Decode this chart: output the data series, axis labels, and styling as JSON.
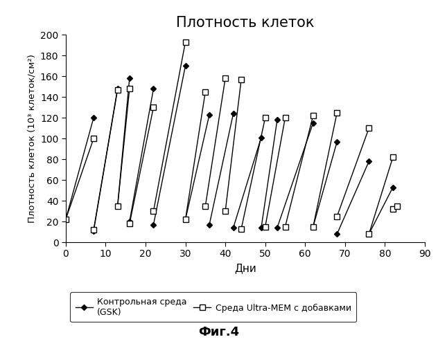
{
  "title": "Плотность клеток",
  "xlabel": "Дни",
  "ylabel": "Плотность клеток (10³ клеток/см²)",
  "xlim": [
    0,
    90
  ],
  "ylim": [
    0,
    200
  ],
  "xticks": [
    0,
    10,
    20,
    30,
    40,
    50,
    60,
    70,
    80,
    90
  ],
  "yticks": [
    0,
    20,
    40,
    60,
    80,
    100,
    120,
    140,
    160,
    180,
    200
  ],
  "fig_caption": "Фиг.4",
  "series1_label": "Контрольная среда\n(GSK)",
  "series2_label": "Среда Ultra-MEM с добавками",
  "series1_segments": [
    [
      [
        0,
        22
      ],
      [
        7,
        120
      ]
    ],
    [
      [
        7,
        11
      ],
      [
        13,
        148
      ]
    ],
    [
      [
        13,
        35
      ],
      [
        16,
        158
      ]
    ],
    [
      [
        16,
        20
      ],
      [
        22,
        148
      ]
    ],
    [
      [
        22,
        17
      ],
      [
        30,
        170
      ]
    ],
    [
      [
        30,
        22
      ],
      [
        36,
        123
      ]
    ],
    [
      [
        36,
        17
      ],
      [
        42,
        124
      ]
    ],
    [
      [
        42,
        14
      ],
      [
        49,
        101
      ]
    ],
    [
      [
        49,
        14
      ],
      [
        53,
        118
      ]
    ],
    [
      [
        53,
        14
      ],
      [
        62,
        115
      ]
    ],
    [
      [
        62,
        15
      ],
      [
        68,
        97
      ]
    ],
    [
      [
        68,
        8
      ],
      [
        76,
        78
      ]
    ],
    [
      [
        76,
        8
      ],
      [
        82,
        53
      ]
    ]
  ],
  "series2_segments": [
    [
      [
        0,
        22
      ],
      [
        7,
        100
      ]
    ],
    [
      [
        7,
        12
      ],
      [
        13,
        147
      ]
    ],
    [
      [
        13,
        35
      ],
      [
        16,
        148
      ]
    ],
    [
      [
        16,
        18
      ],
      [
        22,
        130
      ]
    ],
    [
      [
        22,
        30
      ],
      [
        30,
        193
      ]
    ],
    [
      [
        30,
        22
      ],
      [
        35,
        145
      ]
    ],
    [
      [
        35,
        35
      ],
      [
        40,
        158
      ]
    ],
    [
      [
        40,
        30
      ],
      [
        44,
        157
      ]
    ],
    [
      [
        44,
        13
      ],
      [
        50,
        120
      ]
    ],
    [
      [
        50,
        15
      ],
      [
        55,
        120
      ]
    ],
    [
      [
        55,
        15
      ],
      [
        62,
        122
      ]
    ],
    [
      [
        62,
        15
      ],
      [
        68,
        125
      ]
    ],
    [
      [
        68,
        25
      ],
      [
        76,
        110
      ]
    ],
    [
      [
        76,
        8
      ],
      [
        82,
        82
      ]
    ],
    [
      [
        82,
        32
      ],
      [
        83,
        35
      ]
    ]
  ]
}
